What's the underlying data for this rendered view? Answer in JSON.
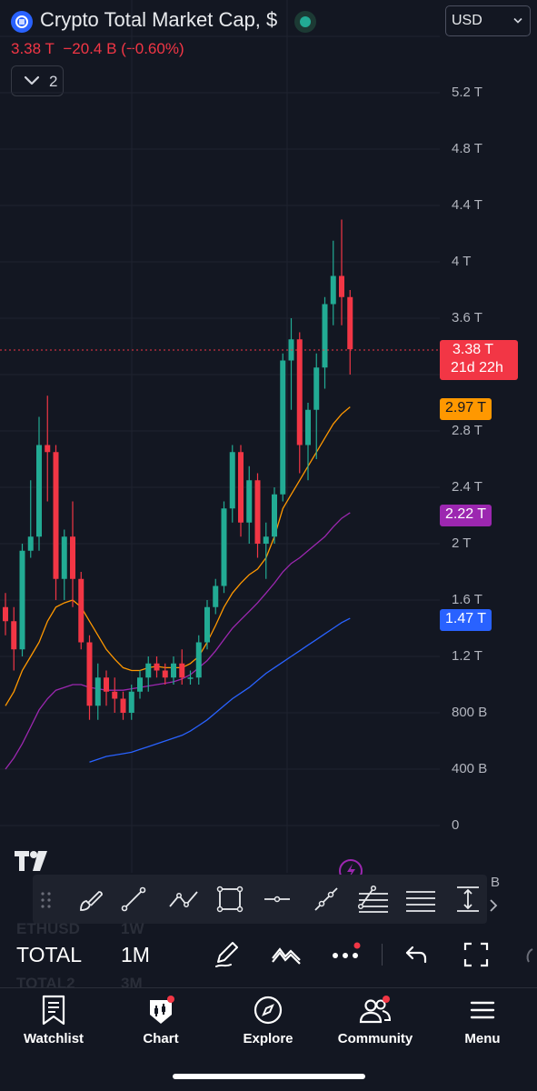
{
  "header": {
    "title": "Crypto Total Market Cap, $",
    "price": "3.38 T",
    "change": "−20.4 B",
    "change_pct": "(−0.60%)",
    "indicators_count": "2",
    "currency": "USD",
    "market_status_color": "#22ab94"
  },
  "price_axis": {
    "ticks": [
      "5.2 T",
      "4.8 T",
      "4.4 T",
      "4 T",
      "3.6 T",
      "2.8 T",
      "2.4 T",
      "2 T",
      "1.6 T",
      "1.2 T",
      "800 B",
      "400 B",
      "0"
    ],
    "current_price": "3.38 T",
    "countdown": "21d 22h",
    "ma_badges": [
      {
        "value": "2.97 T",
        "color": "#ff9800"
      },
      {
        "value": "2.22 T",
        "color": "#9c27b0"
      },
      {
        "value": "1.47 T",
        "color": "#2962ff"
      }
    ]
  },
  "chart_data": {
    "type": "candlestick",
    "y_unit": "trillion USD",
    "ylim": [
      0,
      5.5
    ],
    "up_color": "#22ab94",
    "down_color": "#f23645",
    "candles": [
      [
        1.55,
        1.65,
        1.35,
        1.45
      ],
      [
        1.45,
        1.55,
        1.1,
        1.25
      ],
      [
        1.25,
        2.0,
        1.2,
        1.95
      ],
      [
        1.95,
        2.45,
        1.9,
        2.05
      ],
      [
        2.05,
        2.9,
        1.95,
        2.7
      ],
      [
        2.7,
        3.05,
        2.3,
        2.65
      ],
      [
        2.65,
        2.7,
        1.6,
        1.75
      ],
      [
        1.75,
        2.1,
        1.6,
        2.05
      ],
      [
        2.05,
        2.3,
        1.55,
        1.75
      ],
      [
        1.75,
        1.8,
        1.25,
        1.3
      ],
      [
        1.3,
        1.35,
        0.75,
        0.85
      ],
      [
        0.85,
        1.15,
        0.75,
        1.05
      ],
      [
        1.05,
        1.1,
        0.85,
        0.95
      ],
      [
        0.95,
        1.05,
        0.8,
        0.9
      ],
      [
        0.9,
        0.95,
        0.75,
        0.8
      ],
      [
        0.8,
        1.0,
        0.75,
        0.95
      ],
      [
        0.95,
        1.1,
        0.9,
        1.05
      ],
      [
        1.05,
        1.2,
        0.95,
        1.15
      ],
      [
        1.15,
        1.2,
        1.05,
        1.1
      ],
      [
        1.1,
        1.15,
        1.0,
        1.05
      ],
      [
        1.05,
        1.2,
        1.0,
        1.15
      ],
      [
        1.15,
        1.25,
        1.0,
        1.05
      ],
      [
        1.05,
        1.1,
        1.0,
        1.05
      ],
      [
        1.05,
        1.35,
        1.0,
        1.3
      ],
      [
        1.3,
        1.6,
        1.25,
        1.55
      ],
      [
        1.55,
        1.75,
        1.5,
        1.7
      ],
      [
        1.7,
        2.3,
        1.65,
        2.25
      ],
      [
        2.25,
        2.7,
        2.15,
        2.65
      ],
      [
        2.65,
        2.7,
        2.05,
        2.15
      ],
      [
        2.15,
        2.55,
        2.0,
        2.45
      ],
      [
        2.45,
        2.5,
        1.9,
        2.0
      ],
      [
        2.0,
        2.15,
        1.75,
        2.05
      ],
      [
        2.05,
        2.4,
        2.0,
        2.35
      ],
      [
        2.35,
        3.35,
        2.3,
        3.3
      ],
      [
        3.3,
        3.6,
        2.95,
        3.45
      ],
      [
        3.45,
        3.5,
        2.5,
        2.7
      ],
      [
        2.7,
        3.0,
        2.45,
        2.95
      ],
      [
        2.95,
        3.35,
        2.6,
        3.25
      ],
      [
        3.25,
        3.75,
        3.1,
        3.7
      ],
      [
        3.7,
        4.15,
        3.55,
        3.9
      ],
      [
        3.9,
        4.3,
        3.55,
        3.75
      ],
      [
        3.75,
        3.8,
        3.2,
        3.38
      ]
    ],
    "moving_averages": [
      {
        "name": "MA 20",
        "color": "#ff9800",
        "values": [
          0.85,
          0.95,
          1.1,
          1.2,
          1.3,
          1.45,
          1.55,
          1.58,
          1.6,
          1.55,
          1.45,
          1.35,
          1.25,
          1.18,
          1.12,
          1.1,
          1.1,
          1.12,
          1.13,
          1.12,
          1.12,
          1.12,
          1.15,
          1.2,
          1.3,
          1.42,
          1.55,
          1.65,
          1.72,
          1.78,
          1.82,
          1.9,
          2.05,
          2.25,
          2.35,
          2.45,
          2.55,
          2.65,
          2.75,
          2.85,
          2.92,
          2.97
        ]
      },
      {
        "name": "MA 50",
        "color": "#9c27b0",
        "values": [
          0.4,
          0.48,
          0.58,
          0.7,
          0.82,
          0.9,
          0.96,
          0.98,
          1.0,
          1.0,
          0.98,
          0.97,
          0.96,
          0.96,
          0.96,
          0.97,
          0.98,
          0.99,
          1.0,
          1.01,
          1.02,
          1.04,
          1.07,
          1.12,
          1.17,
          1.24,
          1.32,
          1.4,
          1.46,
          1.52,
          1.58,
          1.65,
          1.72,
          1.8,
          1.86,
          1.9,
          1.95,
          2.0,
          2.05,
          2.12,
          2.18,
          2.22
        ]
      },
      {
        "name": "MA 100",
        "color": "#2962ff",
        "values": [
          null,
          null,
          null,
          null,
          null,
          null,
          null,
          null,
          null,
          null,
          0.45,
          0.47,
          0.49,
          0.5,
          0.51,
          0.52,
          0.54,
          0.56,
          0.58,
          0.6,
          0.62,
          0.64,
          0.67,
          0.71,
          0.75,
          0.8,
          0.85,
          0.9,
          0.94,
          0.98,
          1.03,
          1.08,
          1.12,
          1.16,
          1.2,
          1.24,
          1.28,
          1.32,
          1.36,
          1.4,
          1.44,
          1.47
        ]
      }
    ]
  },
  "drawing_toolbar": {
    "tools": [
      "brush-icon",
      "trend-line-icon",
      "path-icon",
      "rectangle-icon",
      "horizontal-line-icon",
      "ray-icon",
      "fib-retracement-icon",
      "parallel-channel-icon",
      "measure-icon"
    ],
    "overflow_label": "B"
  },
  "ticker_bar": {
    "symbol": "TOTAL",
    "interval": "1M",
    "ghost_prev_symbol": "ETHUSD",
    "ghost_prev_interval": "1W",
    "ghost_next_symbol": "TOTAL2",
    "ghost_next_interval": "3M"
  },
  "bottom_nav": [
    {
      "label": "Watchlist",
      "icon": "bookmark-icon"
    },
    {
      "label": "Chart",
      "icon": "chart-icon"
    },
    {
      "label": "Explore",
      "icon": "compass-icon"
    },
    {
      "label": "Community",
      "icon": "people-icon"
    },
    {
      "label": "Menu",
      "icon": "menu-icon"
    }
  ],
  "colors": {
    "background": "#131722",
    "accent": "#2962ff",
    "down": "#f23645",
    "up": "#22ab94",
    "notification": "#f23645"
  }
}
